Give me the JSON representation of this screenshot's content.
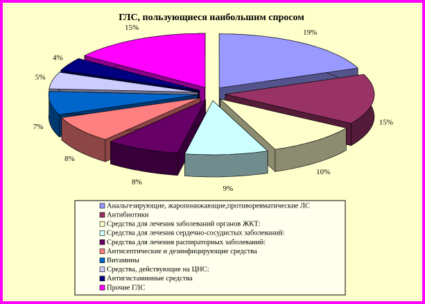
{
  "chart_data": {
    "type": "pie3d",
    "title": "ГЛС, пользующиеся наибольшим спросом",
    "categories": [
      "Анальгезирующие, жаропонижающие,противоревматические ЛС",
      "Антибиотики",
      "Средства для лечения заболеваний органов ЖКТ:",
      "Средства для лечения сердечно-сосудистых заболеваний:",
      "Средства для лечения распираторных заболеваний:",
      "Антисептические и дезинфицирующие средства",
      "Витамины",
      "Средства, действующие на ЦНС:",
      "Антигистаминные средства",
      "Прочие ГЛС"
    ],
    "values": [
      19,
      15,
      10,
      9,
      8,
      8,
      7,
      5,
      4,
      15
    ],
    "value_labels": [
      "19%",
      "15%",
      "10%",
      "9%",
      "8%",
      "8%",
      "7%",
      "5%",
      "4%",
      "15%"
    ],
    "colors": [
      "#9999ff",
      "#993366",
      "#ffffcc",
      "#ccffff",
      "#660066",
      "#ff8080",
      "#0066cc",
      "#ccccff",
      "#000080",
      "#ff00ff"
    ]
  }
}
